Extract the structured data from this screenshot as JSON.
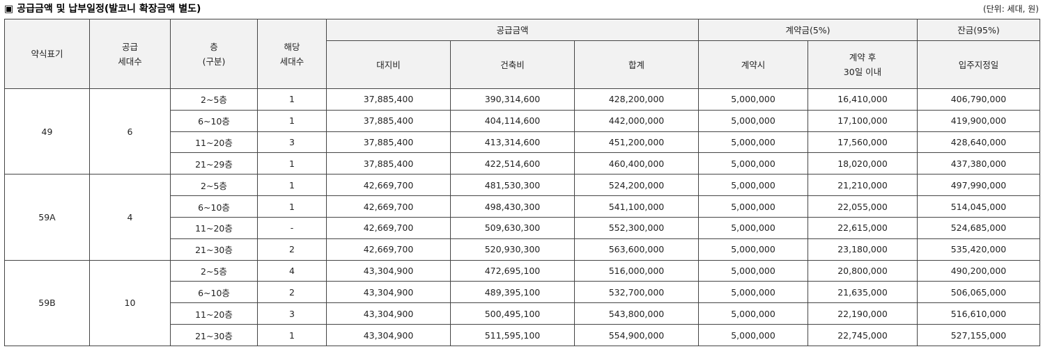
{
  "header": {
    "square": "▣",
    "title": "공급금액 및 납부일정(발코니 확장금액 별도)",
    "unit": "(단위: 세대, 원)"
  },
  "columns": {
    "type": "약식표기",
    "supply_line1": "공급",
    "supply_line2": "세대수",
    "floor_line1": "층",
    "floor_line2": "(구분)",
    "applicable_line1": "해당",
    "applicable_line2": "세대수",
    "supply_price": "공급금액",
    "land": "대지비",
    "building": "건축비",
    "total": "합계",
    "deposit": "계약금(5%)",
    "on_contract": "계약시",
    "after_line1": "계약 후",
    "after_line2": "30일 이내",
    "balance": "잔금(95%)",
    "move_in": "입주지정일"
  },
  "groups": [
    {
      "type": "49",
      "units": "6",
      "rows": [
        {
          "floor": "2~5층",
          "count": "1",
          "land": "37,885,400",
          "building": "390,314,600",
          "total": "428,200,000",
          "on_contract": "5,000,000",
          "after30": "16,410,000",
          "balance": "406,790,000"
        },
        {
          "floor": "6~10층",
          "count": "1",
          "land": "37,885,400",
          "building": "404,114,600",
          "total": "442,000,000",
          "on_contract": "5,000,000",
          "after30": "17,100,000",
          "balance": "419,900,000"
        },
        {
          "floor": "11~20층",
          "count": "3",
          "land": "37,885,400",
          "building": "413,314,600",
          "total": "451,200,000",
          "on_contract": "5,000,000",
          "after30": "17,560,000",
          "balance": "428,640,000"
        },
        {
          "floor": "21~29층",
          "count": "1",
          "land": "37,885,400",
          "building": "422,514,600",
          "total": "460,400,000",
          "on_contract": "5,000,000",
          "after30": "18,020,000",
          "balance": "437,380,000"
        }
      ]
    },
    {
      "type": "59A",
      "units": "4",
      "rows": [
        {
          "floor": "2~5층",
          "count": "1",
          "land": "42,669,700",
          "building": "481,530,300",
          "total": "524,200,000",
          "on_contract": "5,000,000",
          "after30": "21,210,000",
          "balance": "497,990,000"
        },
        {
          "floor": "6~10층",
          "count": "1",
          "land": "42,669,700",
          "building": "498,430,300",
          "total": "541,100,000",
          "on_contract": "5,000,000",
          "after30": "22,055,000",
          "balance": "514,045,000"
        },
        {
          "floor": "11~20층",
          "count": "-",
          "land": "42,669,700",
          "building": "509,630,300",
          "total": "552,300,000",
          "on_contract": "5,000,000",
          "after30": "22,615,000",
          "balance": "524,685,000"
        },
        {
          "floor": "21~30층",
          "count": "2",
          "land": "42,669,700",
          "building": "520,930,300",
          "total": "563,600,000",
          "on_contract": "5,000,000",
          "after30": "23,180,000",
          "balance": "535,420,000"
        }
      ]
    },
    {
      "type": "59B",
      "units": "10",
      "rows": [
        {
          "floor": "2~5층",
          "count": "4",
          "land": "43,304,900",
          "building": "472,695,100",
          "total": "516,000,000",
          "on_contract": "5,000,000",
          "after30": "20,800,000",
          "balance": "490,200,000"
        },
        {
          "floor": "6~10층",
          "count": "2",
          "land": "43,304,900",
          "building": "489,395,100",
          "total": "532,700,000",
          "on_contract": "5,000,000",
          "after30": "21,635,000",
          "balance": "506,065,000"
        },
        {
          "floor": "11~20층",
          "count": "3",
          "land": "43,304,900",
          "building": "500,495,100",
          "total": "543,800,000",
          "on_contract": "5,000,000",
          "after30": "22,190,000",
          "balance": "516,610,000"
        },
        {
          "floor": "21~30층",
          "count": "1",
          "land": "43,304,900",
          "building": "511,595,100",
          "total": "554,900,000",
          "on_contract": "5,000,000",
          "after30": "22,745,000",
          "balance": "527,155,000"
        }
      ]
    }
  ]
}
